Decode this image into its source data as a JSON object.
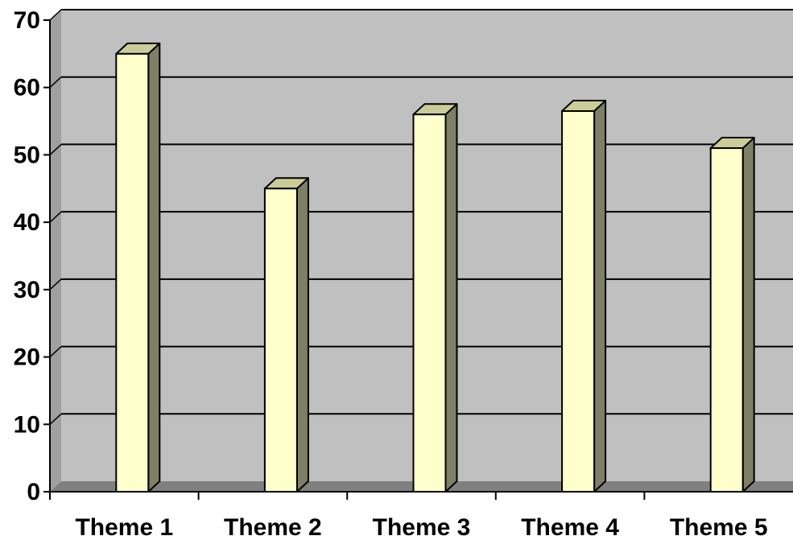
{
  "chart_data": {
    "type": "bar",
    "style": "3d-column",
    "categories": [
      "Theme 1",
      "Theme 2",
      "Theme 3",
      "Theme 4",
      "Theme 5"
    ],
    "values": [
      65,
      45,
      56,
      56.5,
      51
    ],
    "title": "",
    "xlabel": "",
    "ylabel": "",
    "ylim": [
      0,
      70
    ],
    "yticks": [
      0,
      10,
      20,
      30,
      40,
      50,
      60,
      70
    ],
    "grid": true,
    "legend": "none"
  },
  "colors": {
    "wall": "#c0c0c0",
    "wall_side": "#a0a0a0",
    "floor": "#808080",
    "bar_front": "#ffffcc",
    "bar_top": "#cccc99",
    "bar_side": "#7f7f66",
    "gridline": "#000000",
    "text": "#000000"
  }
}
